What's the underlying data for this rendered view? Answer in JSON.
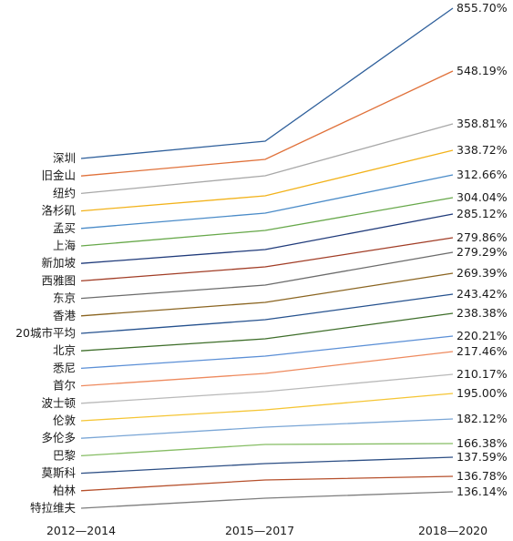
{
  "chart_data": {
    "type": "line",
    "title": "",
    "xlabel": "",
    "ylabel": "",
    "categories": [
      "2012—2014",
      "2015—2017",
      "2018—2020"
    ],
    "grid": false,
    "legend": "none",
    "series": [
      {
        "name": "深圳",
        "end_label": "855.70%",
        "color": "#2e5f9b",
        "values": [
          100,
          128,
          855.7
        ]
      },
      {
        "name": "旧金山",
        "end_label": "548.19%",
        "color": "#e0713a",
        "values": [
          90,
          112,
          548.19
        ]
      },
      {
        "name": "纽约",
        "end_label": "358.81%",
        "color": "#a8a8a8",
        "values": [
          82,
          96,
          358.81
        ]
      },
      {
        "name": "洛杉矶",
        "end_label": "338.72%",
        "color": "#f2b21a",
        "values": [
          70,
          84,
          338.72
        ]
      },
      {
        "name": "孟买",
        "end_label": "312.66%",
        "color": "#4a8bc8",
        "values": [
          60,
          72,
          312.66
        ]
      },
      {
        "name": "上海",
        "end_label": "304.04%",
        "color": "#67a84a",
        "values": [
          52,
          63,
          304.04
        ]
      },
      {
        "name": "新加坡",
        "end_label": "285.12%",
        "color": "#1f3a7a",
        "values": [
          44,
          56,
          285.12
        ]
      },
      {
        "name": "西雅图",
        "end_label": "279.86%",
        "color": "#a13c25",
        "values": [
          37,
          48,
          279.86
        ]
      },
      {
        "name": "东京",
        "end_label": "279.29%",
        "color": "#6b6b6b",
        "values": [
          31,
          41,
          279.29
        ]
      },
      {
        "name": "香港",
        "end_label": "269.39%",
        "color": "#8a6420",
        "values": [
          26,
          35,
          269.39
        ]
      },
      {
        "name": "20城市平均",
        "end_label": "243.42%",
        "color": "#25518e",
        "values": [
          22,
          29,
          243.42
        ]
      },
      {
        "name": "北京",
        "end_label": "238.38%",
        "color": "#3e6e2a",
        "values": [
          18,
          24,
          238.38
        ]
      },
      {
        "name": "悉尼",
        "end_label": "220.21%",
        "color": "#5b8fd6",
        "values": [
          15,
          19,
          220.21
        ]
      },
      {
        "name": "首尔",
        "end_label": "217.46%",
        "color": "#ee8a5e",
        "values": [
          12,
          15,
          217.46
        ]
      },
      {
        "name": "波士顿",
        "end_label": "210.17%",
        "color": "#b9b9b9",
        "values": [
          10,
          12,
          210.17
        ]
      },
      {
        "name": "伦敦",
        "end_label": "195.00%",
        "color": "#f5c534",
        "values": [
          8,
          10,
          195.0
        ]
      },
      {
        "name": "多伦多",
        "end_label": "182.12%",
        "color": "#7aa6d6",
        "values": [
          6,
          8,
          182.12
        ]
      },
      {
        "name": "巴黎",
        "end_label": "166.38%",
        "color": "#86bd64",
        "values": [
          5,
          6,
          166.38
        ]
      },
      {
        "name": "莫斯科",
        "end_label": "137.59%",
        "color": "#2c4e84",
        "values": [
          4,
          5,
          137.59
        ]
      },
      {
        "name": "柏林",
        "end_label": "136.78%",
        "color": "#b6502c",
        "values": [
          3,
          4,
          136.78
        ]
      },
      {
        "name": "特拉维夫",
        "end_label": "136.14%",
        "color": "#7d7d7d",
        "values": [
          2,
          3,
          136.14
        ]
      }
    ]
  }
}
